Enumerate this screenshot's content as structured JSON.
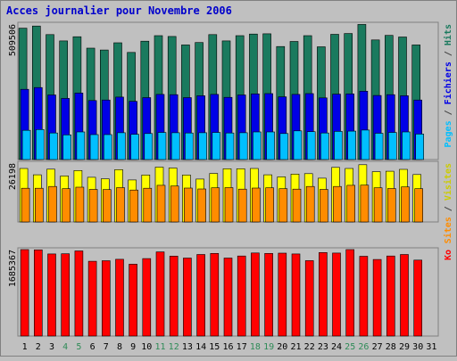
{
  "chart_data": {
    "type": "bar",
    "title": "Acces journalier pour Novembre 2006",
    "categories": [
      "1",
      "2",
      "3",
      "4",
      "5",
      "6",
      "7",
      "8",
      "9",
      "10",
      "11",
      "12",
      "13",
      "14",
      "15",
      "16",
      "17",
      "18",
      "19",
      "20",
      "21",
      "22",
      "23",
      "24",
      "25",
      "26",
      "27",
      "28",
      "29",
      "30",
      "31"
    ],
    "weekend_days": [
      "4",
      "5",
      "11",
      "12",
      "18",
      "19",
      "25",
      "26"
    ],
    "panels": [
      {
        "id": "top",
        "max_label": "509506",
        "ymax": 509506,
        "series": [
          {
            "name": "Hits",
            "color": "#1a7a5e",
            "values": [
              494000,
              502000,
              470000,
              446000,
              462000,
              419000,
              412000,
              439000,
              403000,
              445000,
              466000,
              463000,
              431000,
              440000,
              470000,
              446000,
              466000,
              472000,
              473000,
              425000,
              444000,
              466000,
              424000,
              471000,
              474000,
              508000,
              450000,
              467000,
              461000,
              431000,
              null
            ]
          },
          {
            "name": "Fichiers",
            "color": "#0000e6",
            "values": [
              264000,
              271000,
              243000,
              230000,
              250000,
              222000,
              224000,
              235000,
              219000,
              233000,
              245000,
              244000,
              233000,
              240000,
              245000,
              234000,
              243000,
              247000,
              248000,
              236000,
              245000,
              248000,
              232000,
              246000,
              247000,
              257000,
              241000,
              244000,
              240000,
              224000,
              null
            ]
          },
          {
            "name": "Pages",
            "color": "#00bfff",
            "values": [
              110000,
              113000,
              100000,
              93000,
              104000,
              94000,
              94000,
              101000,
              95000,
              98000,
              102000,
              101000,
              100000,
              101000,
              102000,
              100000,
              101000,
              104000,
              104000,
              98000,
              108000,
              105000,
              100000,
              106000,
              107000,
              111000,
              99000,
              102000,
              104000,
              96000,
              null
            ]
          }
        ],
        "legend": [
          {
            "text": "Pages",
            "color": "#00bfff"
          },
          {
            "text": " / ",
            "color": "#444444"
          },
          {
            "text": "Fichiers",
            "color": "#0000e6"
          },
          {
            "text": " / ",
            "color": "#444444"
          },
          {
            "text": "Hits",
            "color": "#1a7a5e"
          }
        ]
      },
      {
        "id": "mid",
        "max_label": "26198",
        "ymax": 26198,
        "series": [
          {
            "name": "Visites",
            "color": "#ffff00",
            "values": [
              23800,
              21000,
              23500,
              20500,
              22900,
              19900,
              19200,
              23300,
              18700,
              20900,
              24400,
              24000,
              20900,
              19100,
              21600,
              23700,
              23700,
              23800,
              21000,
              20100,
              21300,
              21500,
              19500,
              24300,
              23800,
              25500,
              22400,
              22600,
              23400,
              21100,
              null
            ]
          },
          {
            "name": "Sites",
            "color": "#ff8c00",
            "values": [
              15000,
              15000,
              15800,
              14800,
              15500,
              14500,
              14400,
              15300,
              14200,
              15000,
              16300,
              16000,
              15100,
              14700,
              15200,
              15300,
              14600,
              15100,
              15200,
              14800,
              14600,
              15800,
              14500,
              15800,
              16300,
              16400,
              15200,
              14900,
              15600,
              14800,
              null
            ]
          }
        ],
        "legend": [
          {
            "text": "Sites",
            "color": "#ff8c00"
          },
          {
            "text": " / ",
            "color": "#444444"
          },
          {
            "text": "Visites",
            "color": "#cccc00"
          }
        ]
      },
      {
        "id": "bot",
        "max_label": "1685367",
        "ymax": 1685367,
        "series": [
          {
            "name": "Ko",
            "color": "#ff0000",
            "values": [
              1685000,
              1680000,
              1600000,
              1604000,
              1660000,
              1458000,
              1468000,
              1496000,
              1400000,
              1510000,
              1640000,
              1558000,
              1520000,
              1590000,
              1610000,
              1520000,
              1560000,
              1620000,
              1610000,
              1615000,
              1600000,
              1470000,
              1628000,
              1617000,
              1685000,
              1555000,
              1493000,
              1560000,
              1590000,
              1480000,
              null
            ]
          }
        ],
        "legend": [
          {
            "text": "Ko",
            "color": "#ff0000"
          }
        ]
      }
    ]
  }
}
